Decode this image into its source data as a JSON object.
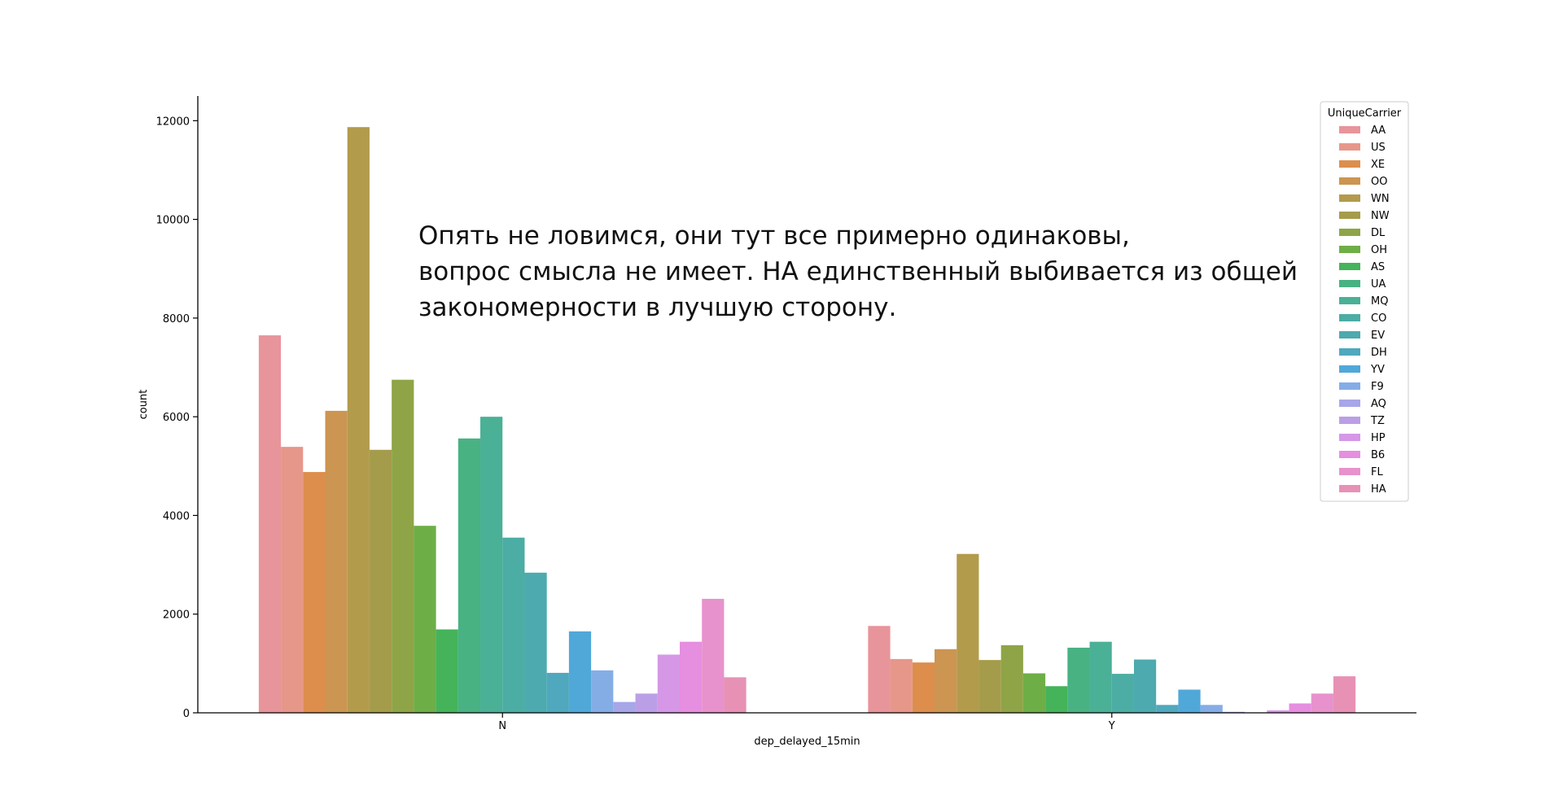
{
  "annotation": {
    "lines": [
      "Опять не ловимся, они тут все примерно одинаковы,",
      "вопрос смысла не имеет. НА единственный выбивается из общей",
      "закономерности в лучшую сторону."
    ]
  },
  "chart_data": {
    "type": "bar",
    "xlabel": "dep_delayed_15min",
    "ylabel": "count",
    "ylim": [
      0,
      12500
    ],
    "yticks": [
      0,
      2000,
      4000,
      6000,
      8000,
      10000,
      12000
    ],
    "categories": [
      "N",
      "Y"
    ],
    "grid": false,
    "legend": {
      "title": "UniqueCarrier",
      "placement": "top-right"
    },
    "series": [
      {
        "name": "AA",
        "color": "#e8949b",
        "values": [
          7650,
          1760
        ]
      },
      {
        "name": "US",
        "color": "#e7978a",
        "values": [
          5390,
          1090
        ]
      },
      {
        "name": "XE",
        "color": "#dd8e4d",
        "values": [
          4880,
          1020
        ]
      },
      {
        "name": "OO",
        "color": "#cc9551",
        "values": [
          6120,
          1290
        ]
      },
      {
        "name": "WN",
        "color": "#b39b4c",
        "values": [
          11870,
          3220
        ]
      },
      {
        "name": "NW",
        "color": "#a59c4b",
        "values": [
          5330,
          1070
        ]
      },
      {
        "name": "DL",
        "color": "#8fa447",
        "values": [
          6750,
          1370
        ]
      },
      {
        "name": "OH",
        "color": "#6eae47",
        "values": [
          3790,
          800
        ]
      },
      {
        "name": "AS",
        "color": "#44b35a",
        "values": [
          1690,
          540
        ]
      },
      {
        "name": "UA",
        "color": "#48b283",
        "values": [
          5560,
          1320
        ]
      },
      {
        "name": "MQ",
        "color": "#4ab096",
        "values": [
          6000,
          1440
        ]
      },
      {
        "name": "CO",
        "color": "#4bada4",
        "values": [
          3550,
          790
        ]
      },
      {
        "name": "EV",
        "color": "#4daaae",
        "values": [
          2840,
          1080
        ]
      },
      {
        "name": "DH",
        "color": "#4fa8bd",
        "values": [
          810,
          160
        ]
      },
      {
        "name": "YV",
        "color": "#50a8d9",
        "values": [
          1650,
          470
        ]
      },
      {
        "name": "F9",
        "color": "#84ade6",
        "values": [
          860,
          160
        ]
      },
      {
        "name": "AQ",
        "color": "#a6a6e9",
        "values": [
          220,
          20
        ]
      },
      {
        "name": "TZ",
        "color": "#bb9fe6",
        "values": [
          390,
          0
        ]
      },
      {
        "name": "HP",
        "color": "#d597e6",
        "values": [
          1180,
          50
        ]
      },
      {
        "name": "B6",
        "color": "#e68ee0",
        "values": [
          1440,
          190
        ]
      },
      {
        "name": "FL",
        "color": "#e792cc",
        "values": [
          2310,
          390
        ]
      },
      {
        "name": "HA",
        "color": "#e791b5",
        "values": [
          720,
          740
        ]
      }
    ]
  }
}
